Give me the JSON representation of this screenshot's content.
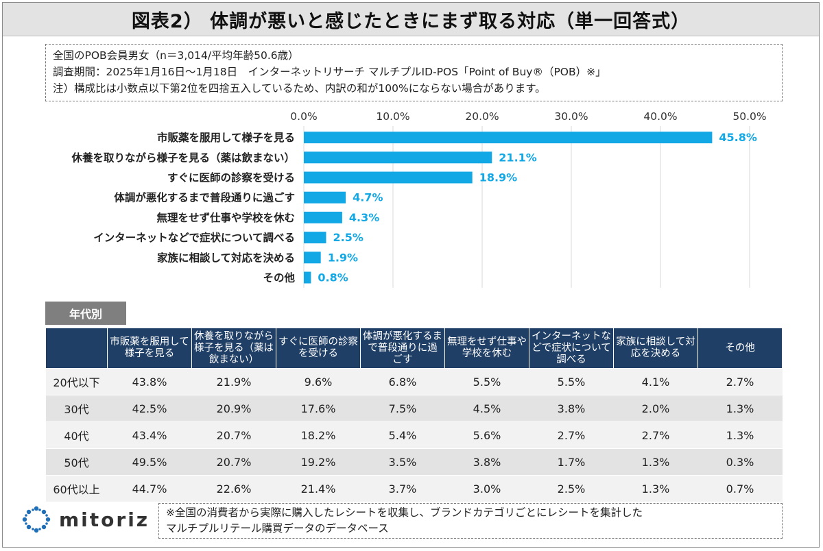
{
  "title": "図表2） 体調が悪いと感じたときにまず取る対応（単一回答式）",
  "notes": [
    "全国のPOB会員男女（n＝3,014/平均年齢50.6歳）",
    "調査期間：2025年1月16日～1月18日　インターネットリサーチ マルチプルID-POS「Point of Buy®（POB）※」",
    "注）構成比は小数点以下第2位を四捨五入しているため、内訳の和が100%にならない場合があります。"
  ],
  "chart_data": {
    "type": "bar",
    "orientation": "horizontal",
    "categories": [
      "市販薬を服用して様子を見る",
      "休養を取りながら様子を見る（薬は飲まない）",
      "すぐに医師の診察を受ける",
      "体調が悪化するまで普段通りに過ごす",
      "無理をせず仕事や学校を休む",
      "インターネットなどで症状について調べる",
      "家族に相談して対応を決める",
      "その他"
    ],
    "values": [
      45.8,
      21.1,
      18.9,
      4.7,
      4.3,
      2.5,
      1.9,
      0.8
    ],
    "value_labels": [
      "45.8%",
      "21.1%",
      "18.9%",
      "4.7%",
      "4.3%",
      "2.5%",
      "1.9%",
      "0.8%"
    ],
    "xlim": [
      0,
      50
    ],
    "ticks": [
      0,
      10,
      20,
      30,
      40,
      50
    ],
    "tick_labels": [
      "0.0%",
      "10.0%",
      "20.0%",
      "30.0%",
      "40.0%",
      "50.0%"
    ],
    "axis_position": "top",
    "grid": true,
    "bar_color": "#12a8e6",
    "label_color": "#12a8e6"
  },
  "age_table": {
    "tab_label": "年代別",
    "corner": "",
    "headers": [
      "市販薬を服用して様子を見る",
      "休養を取りながら様子を見る（薬は飲まない）",
      "すぐに医師の診察を受ける",
      "体調が悪化するまで普段通りに過ごす",
      "無理をせず仕事や学校を休む",
      "インターネットなどで症状について調べる",
      "家族に相談して対応を決める",
      "その他"
    ],
    "rows": [
      {
        "label": "20代以下",
        "values": [
          "43.8%",
          "21.9%",
          "9.6%",
          "6.8%",
          "5.5%",
          "5.5%",
          "4.1%",
          "2.7%"
        ]
      },
      {
        "label": "30代",
        "values": [
          "42.5%",
          "20.9%",
          "17.6%",
          "7.5%",
          "4.5%",
          "3.8%",
          "2.0%",
          "1.3%"
        ]
      },
      {
        "label": "40代",
        "values": [
          "43.4%",
          "20.7%",
          "18.2%",
          "5.4%",
          "5.6%",
          "2.7%",
          "2.7%",
          "1.3%"
        ]
      },
      {
        "label": "50代",
        "values": [
          "49.5%",
          "20.7%",
          "19.2%",
          "3.5%",
          "3.8%",
          "1.7%",
          "1.3%",
          "0.3%"
        ]
      },
      {
        "label": "60代以上",
        "values": [
          "44.7%",
          "22.6%",
          "21.4%",
          "3.7%",
          "3.0%",
          "2.5%",
          "1.3%",
          "0.7%"
        ]
      }
    ]
  },
  "logo": {
    "text": "mitoriz",
    "icon": "mitoriz-logo-icon",
    "color": "#1e6fb8"
  },
  "footer_note": [
    "※全国の消費者から実際に購入したレシートを収集し、ブランドカテゴリごとにレシートを集計した",
    "マルチプルリテール購買データのデータベース"
  ]
}
